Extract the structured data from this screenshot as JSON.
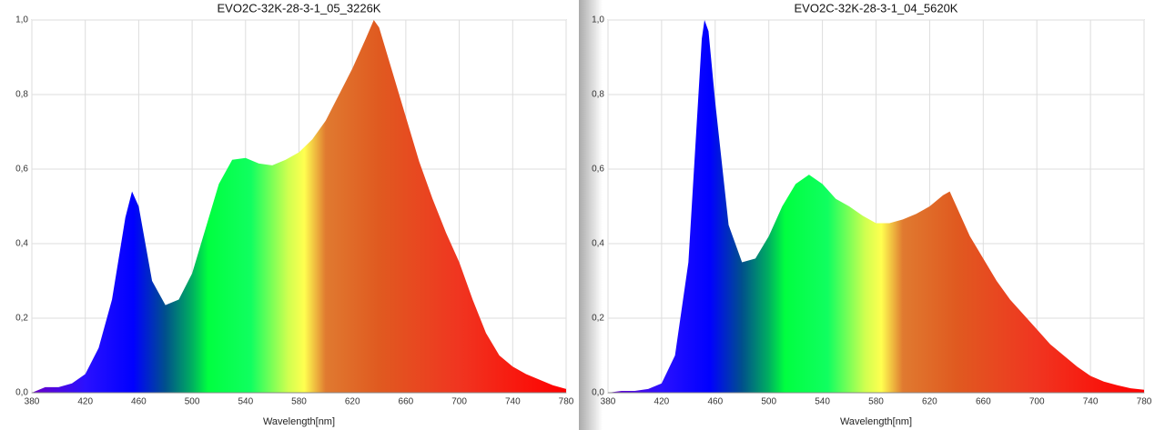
{
  "chart_data": [
    {
      "type": "area",
      "title": "EVO2C-32K-28-3-1_05_3226K",
      "x_label": "Wavelength[nm]",
      "x": [
        380,
        390,
        400,
        410,
        420,
        430,
        440,
        450,
        455,
        460,
        470,
        480,
        490,
        500,
        510,
        520,
        530,
        540,
        550,
        560,
        570,
        580,
        590,
        600,
        610,
        620,
        630,
        636,
        640,
        650,
        660,
        670,
        680,
        690,
        700,
        710,
        720,
        730,
        740,
        750,
        760,
        770,
        780
      ],
      "values": [
        0,
        0.015,
        0.015,
        0.025,
        0.05,
        0.12,
        0.25,
        0.47,
        0.54,
        0.5,
        0.3,
        0.235,
        0.25,
        0.32,
        0.44,
        0.56,
        0.625,
        0.63,
        0.615,
        0.61,
        0.625,
        0.645,
        0.68,
        0.73,
        0.8,
        0.87,
        0.95,
        1.0,
        0.98,
        0.86,
        0.74,
        0.62,
        0.52,
        0.43,
        0.35,
        0.25,
        0.16,
        0.1,
        0.07,
        0.05,
        0.035,
        0.02,
        0.01
      ],
      "xlim": [
        380,
        780
      ],
      "xticks": [
        380,
        420,
        460,
        500,
        540,
        580,
        620,
        660,
        700,
        740,
        780
      ],
      "ylim": [
        0,
        1
      ],
      "yticks": [
        {
          "value": 0,
          "label": "0,0"
        },
        {
          "value": 0.2,
          "label": "0,2"
        },
        {
          "value": 0.4,
          "label": "0,4"
        },
        {
          "value": 0.6,
          "label": "0,6"
        },
        {
          "value": 0.8,
          "label": "0,8"
        },
        {
          "value": 1,
          "label": "1,0"
        }
      ],
      "grid": true
    },
    {
      "type": "area",
      "title": "EVO2C-32K-28-3-1_04_5620K",
      "x_label": "Wavelength[nm]",
      "x": [
        380,
        390,
        400,
        410,
        420,
        430,
        440,
        445,
        450,
        452,
        455,
        460,
        470,
        480,
        490,
        500,
        510,
        520,
        530,
        540,
        550,
        560,
        570,
        580,
        590,
        600,
        610,
        620,
        630,
        635,
        640,
        650,
        660,
        670,
        680,
        690,
        700,
        710,
        720,
        730,
        740,
        750,
        760,
        770,
        780
      ],
      "values": [
        0,
        0.005,
        0.005,
        0.01,
        0.025,
        0.1,
        0.35,
        0.65,
        0.95,
        1.0,
        0.97,
        0.78,
        0.45,
        0.35,
        0.36,
        0.42,
        0.5,
        0.56,
        0.585,
        0.56,
        0.52,
        0.5,
        0.475,
        0.455,
        0.455,
        0.465,
        0.48,
        0.5,
        0.53,
        0.54,
        0.5,
        0.42,
        0.36,
        0.3,
        0.25,
        0.21,
        0.17,
        0.13,
        0.1,
        0.07,
        0.045,
        0.03,
        0.02,
        0.012,
        0.008
      ],
      "xlim": [
        380,
        780
      ],
      "xticks": [
        380,
        420,
        460,
        500,
        540,
        580,
        620,
        660,
        700,
        740,
        780
      ],
      "ylim": [
        0,
        1
      ],
      "yticks": [
        {
          "value": 0,
          "label": "0,0"
        },
        {
          "value": 0.2,
          "label": "0,2"
        },
        {
          "value": 0.4,
          "label": "0,4"
        },
        {
          "value": 0.6,
          "label": "0,6"
        },
        {
          "value": 0.8,
          "label": "0,8"
        },
        {
          "value": 1,
          "label": "1,0"
        }
      ],
      "grid": true
    }
  ]
}
